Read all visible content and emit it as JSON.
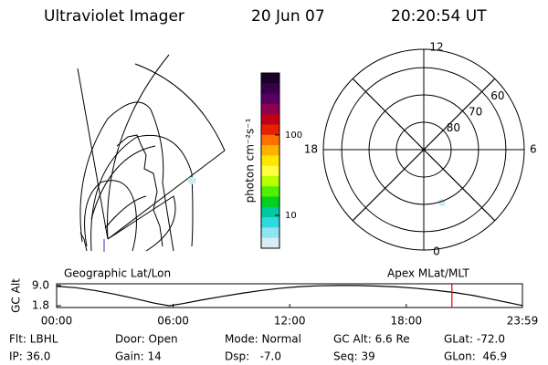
{
  "header": {
    "title": "Ultraviolet Imager",
    "date": "20 Jun 07",
    "time": "20:20:54 UT"
  },
  "colorbar": {
    "label": "photon cm⁻²s⁻¹",
    "log": true,
    "clim": [
      3.9,
      590
    ],
    "ticks": [
      10,
      100
    ],
    "colors": [
      "#180028",
      "#380048",
      "#580060",
      "#900050",
      "#c00018",
      "#e82000",
      "#ff7000",
      "#ffb000",
      "#ffe800",
      "#ffff40",
      "#b8ff00",
      "#50f000",
      "#00d020",
      "#00c8a0",
      "#30d8e0",
      "#90e4f0",
      "#d8eef6"
    ]
  },
  "polar": {
    "rlim": [
      90,
      53.3
    ],
    "rticks": [
      80,
      70,
      60
    ],
    "thetaticks": [
      0,
      6,
      12,
      18
    ]
  },
  "geo_label": "Geographic Lat/Lon",
  "apex_label": "Apex MLat/MLT",
  "chart_data": {
    "type": "line",
    "ylabel": "GC Alt",
    "x": [
      0,
      1,
      2,
      3,
      4,
      5,
      5.8,
      6.5,
      7.5,
      8.5,
      9.5,
      10.5,
      11.5,
      12.5,
      13.5,
      14.5,
      15.5,
      16.5,
      17.5,
      18.5,
      19.5,
      20.5,
      21.5,
      22.5,
      23.98
    ],
    "series": [
      {
        "name": "GC Alt",
        "color": "#000000",
        "values": [
          8.7,
          8.2,
          7.2,
          5.9,
          4.4,
          2.8,
          1.8,
          2.6,
          3.9,
          5.1,
          6.2,
          7.2,
          8.0,
          8.6,
          8.9,
          9.0,
          9.0,
          8.8,
          8.5,
          8.0,
          7.3,
          6.5,
          5.4,
          4.0,
          1.9
        ]
      }
    ],
    "xlim": [
      0,
      23.98
    ],
    "xticks": [
      {
        "value": 0,
        "label": "00:00"
      },
      {
        "value": 6,
        "label": "06:00"
      },
      {
        "value": 12,
        "label": "12:00"
      },
      {
        "value": 18,
        "label": "18:00"
      },
      {
        "value": 23.98,
        "label": "23:59"
      }
    ],
    "ylim": [
      1.2,
      9.6
    ],
    "yticks": [
      {
        "value": 9,
        "label": "9.0"
      },
      {
        "value": 1.8,
        "label": "1.8"
      }
    ],
    "marker_x": 20.35,
    "marker_color": "#e00000"
  },
  "footer": [
    [
      "Flt: LBHL",
      "Door: Open",
      "Mode: Normal",
      "GC Alt: 6.6 Re",
      "GLat: -72.0"
    ],
    [
      "IP: 36.0",
      "Gain: 14",
      "Dsp:   -7.0",
      "Seq: 39",
      "GLon:  46.9"
    ]
  ]
}
